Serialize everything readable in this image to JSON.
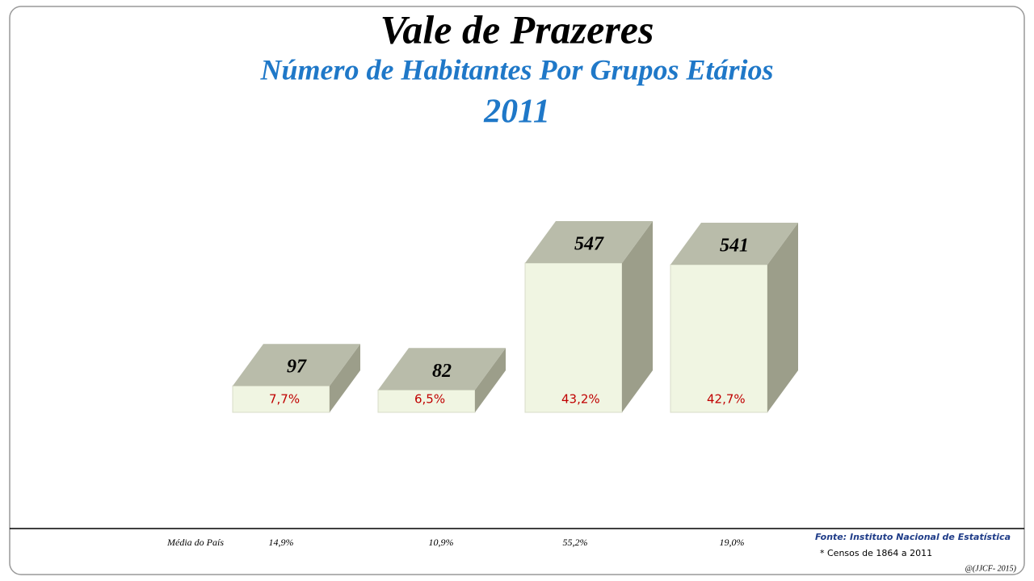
{
  "chart_data": {
    "type": "bar3d",
    "title": "Vale de Prazeres",
    "subtitle": "Número de Habitantes Por Grupos Etários",
    "year": "2011",
    "categories": [
      null,
      null,
      null,
      null
    ],
    "values": [
      97,
      82,
      547,
      541
    ],
    "front_color": "#f0f5e2",
    "top_color": "#b9bcaa",
    "side_color": "#9c9e8a",
    "shares": {
      "values": [
        7.7,
        6.5,
        43.2,
        42.7
      ],
      "value_labels": [
        "7,7%",
        "6,5%",
        "43,2%",
        "42,7%"
      ],
      "color": "#c00000"
    },
    "national_average": {
      "label": "Média do País",
      "values": [
        14.9,
        10.9,
        55.2,
        19.0
      ],
      "value_labels": [
        "14,9%",
        "10,9%",
        "55,2%",
        "19,0%"
      ]
    },
    "source": "Fonte: Instituto Nacional de Estatística",
    "note": "* Censos de 1864 a 2011",
    "credit": "@(JJCF- 2015)"
  }
}
